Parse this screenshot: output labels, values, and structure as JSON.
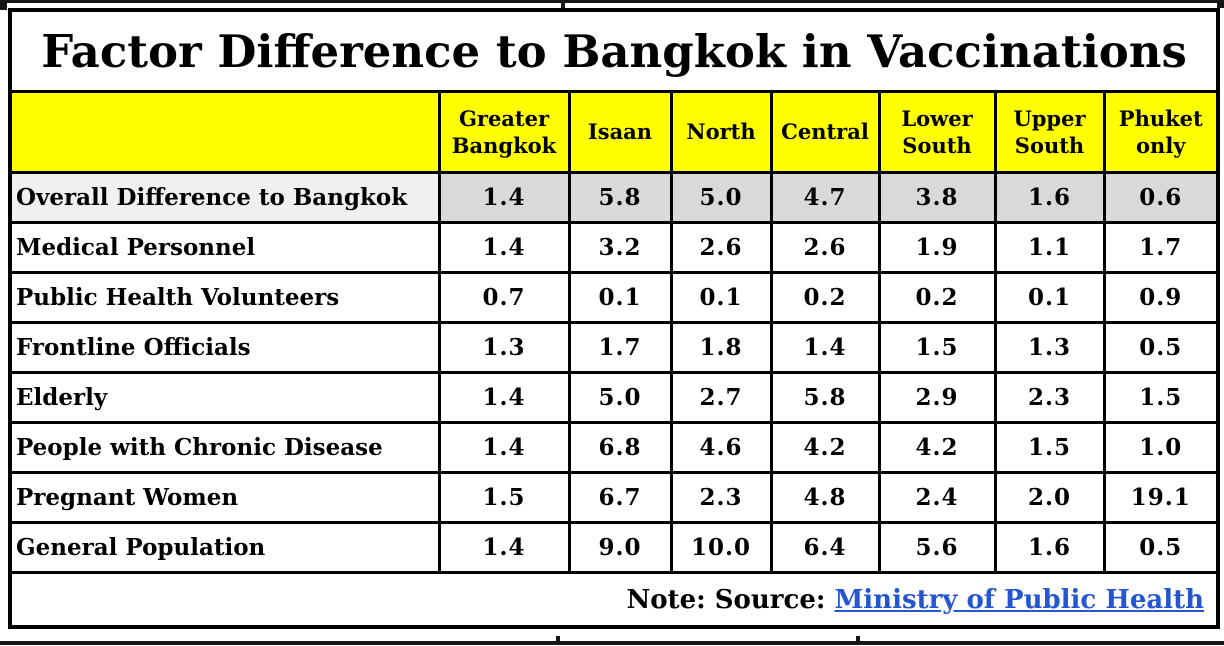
{
  "title": "Factor Difference to Bangkok in Vaccinations",
  "chart_data": {
    "type": "table",
    "title": "Factor Difference to Bangkok in Vaccinations",
    "categories": [
      "Greater Bangkok",
      "Isaan",
      "North",
      "Central",
      "Lower South",
      "Upper South",
      "Phuket only"
    ],
    "series": [
      {
        "name": "Overall Difference to Bangkok",
        "values": [
          1.4,
          5.8,
          5.0,
          4.7,
          3.8,
          1.6,
          0.6
        ],
        "highlighted": true
      },
      {
        "name": "Medical Personnel",
        "values": [
          1.4,
          3.2,
          2.6,
          2.6,
          1.9,
          1.1,
          1.7
        ],
        "highlighted": false
      },
      {
        "name": "Public Health Volunteers",
        "values": [
          0.7,
          0.1,
          0.1,
          0.2,
          0.2,
          0.1,
          0.9
        ],
        "highlighted": false
      },
      {
        "name": "Frontline Officials",
        "values": [
          1.3,
          1.7,
          1.8,
          1.4,
          1.5,
          1.3,
          0.5
        ],
        "highlighted": false
      },
      {
        "name": "Elderly",
        "values": [
          1.4,
          5.0,
          2.7,
          5.8,
          2.9,
          2.3,
          1.5
        ],
        "highlighted": false
      },
      {
        "name": "People with Chronic Disease",
        "values": [
          1.4,
          6.8,
          4.6,
          4.2,
          4.2,
          1.5,
          1.0
        ],
        "highlighted": false
      },
      {
        "name": "Pregnant Women",
        "values": [
          1.5,
          6.7,
          2.3,
          4.8,
          2.4,
          2.0,
          19.1
        ],
        "highlighted": false
      },
      {
        "name": "General Population",
        "values": [
          1.4,
          9.0,
          10.0,
          6.4,
          5.6,
          1.6,
          0.5
        ],
        "highlighted": false
      }
    ],
    "value_format": "one_decimal",
    "layout": "row labels left, region columns, highlighted summary row"
  },
  "note": {
    "prefix": "Note: Source: ",
    "link_text": "Ministry of Public Health"
  },
  "colors": {
    "header_bg": "#ffff00",
    "highlight_label_bg": "#f0f0f0",
    "highlight_value_bg": "#d9d9d9",
    "link_color": "#2456d2",
    "border_color": "#000000"
  }
}
